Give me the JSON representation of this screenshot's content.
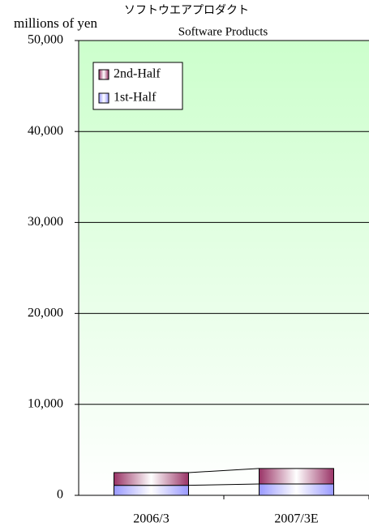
{
  "chart_data": {
    "type": "stacked_bar",
    "title": "ソフトウエアプロダクト",
    "subtitle": "Software Products",
    "y_label": "millions of yen",
    "categories": [
      "2006/3",
      "2007/3E"
    ],
    "series": [
      {
        "name": "1st-Half",
        "color": "#9999ff",
        "values": [
          1100,
          1250
        ]
      },
      {
        "name": "2nd-Half",
        "color": "#993366",
        "values": [
          1400,
          1700
        ]
      }
    ],
    "ylim": [
      0,
      50000
    ],
    "yticks": [
      0,
      {
        "value": 10000,
        "label": "10,000"
      },
      {
        "value": 20000,
        "label": "20,000"
      },
      {
        "value": 30000,
        "label": "30,000"
      },
      {
        "value": 40000,
        "label": "40,000"
      },
      {
        "value": 50000,
        "label": "50,000"
      }
    ],
    "grid": true,
    "legend": "top-left"
  }
}
